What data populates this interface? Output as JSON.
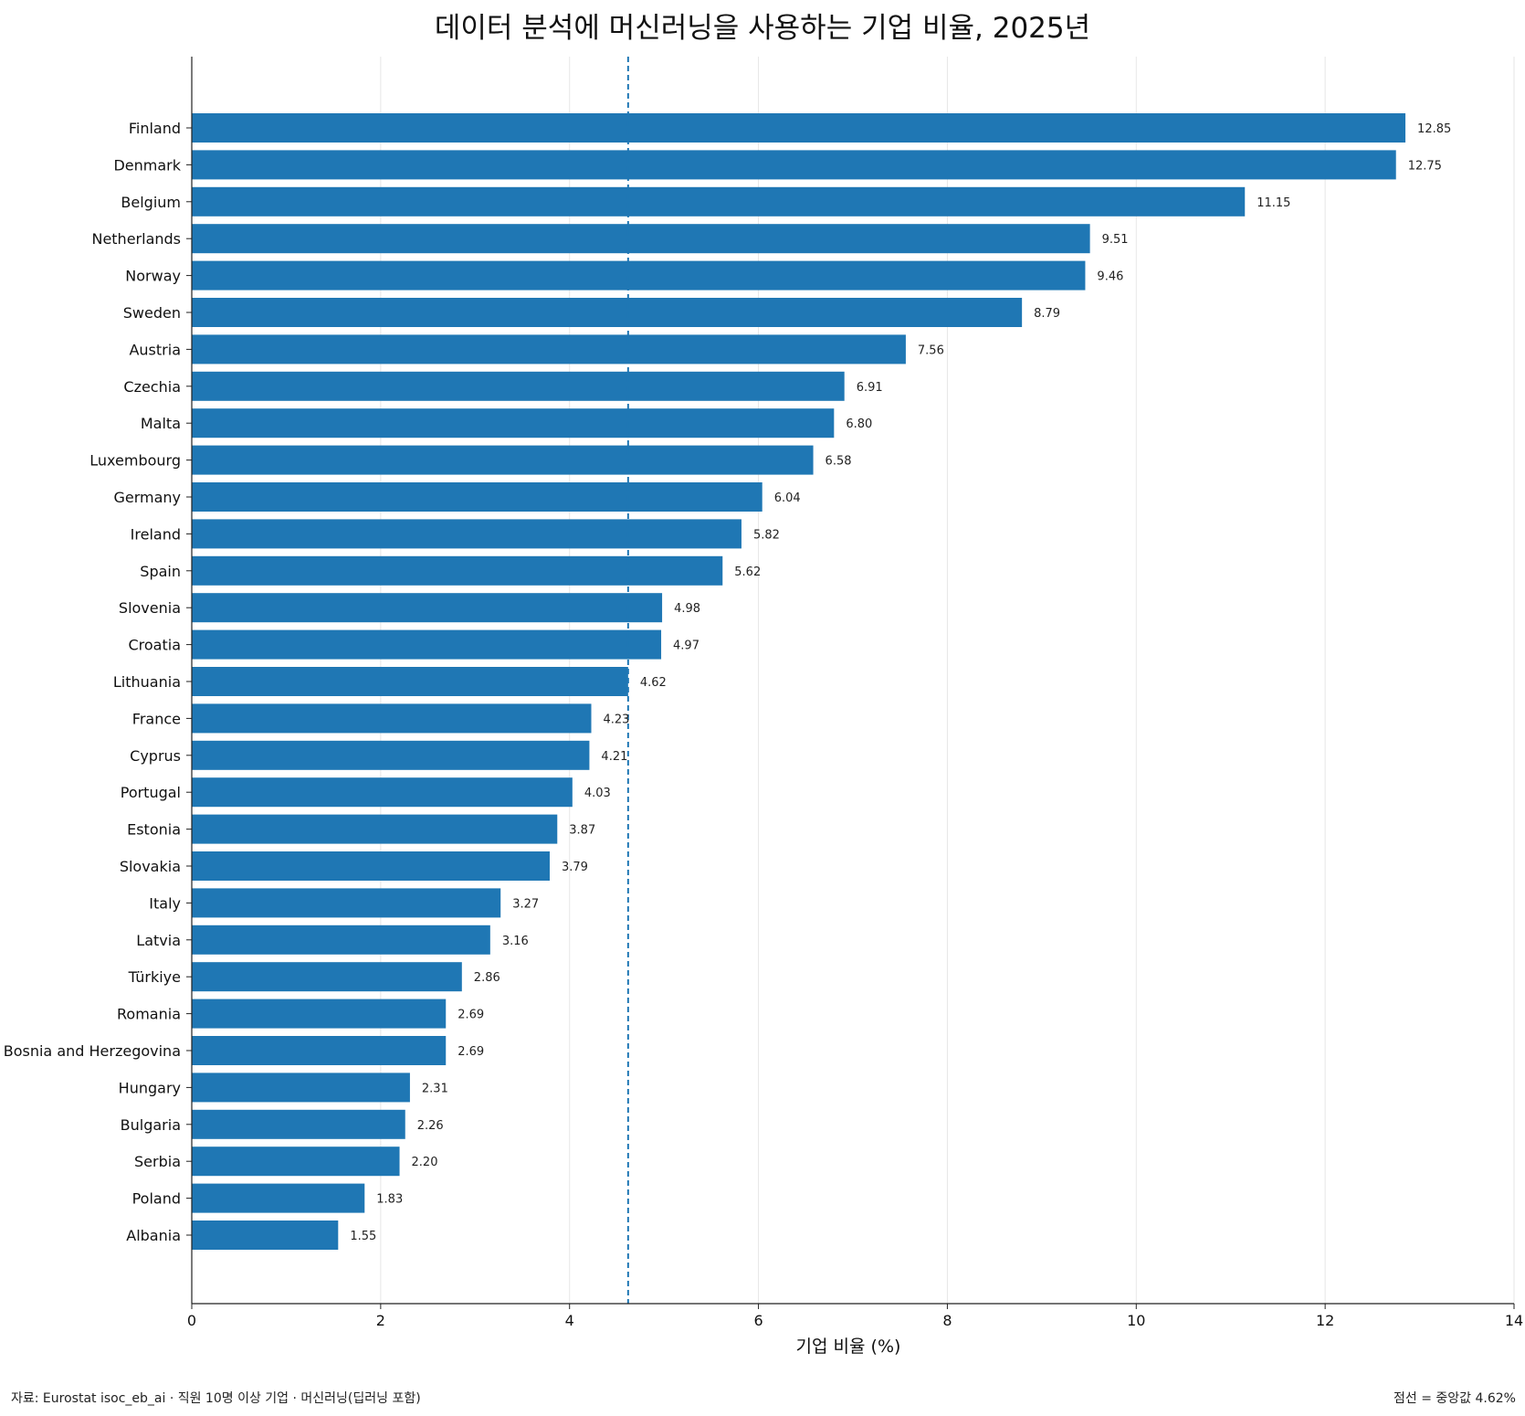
{
  "chart_data": {
    "type": "bar",
    "orientation": "horizontal",
    "title": "데이터 분석에 머신러닝을 사용하는 기업 비율, 2025년",
    "xlabel": "기업 비율 (%)",
    "ylabel": "",
    "xlim": [
      0,
      14
    ],
    "xticks": [
      "0",
      "2",
      "4",
      "6",
      "8",
      "10",
      "12",
      "14"
    ],
    "grid": "vertical",
    "bar_color": "#1f77b4",
    "reference_line": {
      "value": 4.62,
      "style": "dashed",
      "color": "#1f77b4"
    },
    "categories": [
      "Finland",
      "Denmark",
      "Belgium",
      "Netherlands",
      "Norway",
      "Sweden",
      "Austria",
      "Czechia",
      "Malta",
      "Luxembourg",
      "Germany",
      "Ireland",
      "Spain",
      "Slovenia",
      "Croatia",
      "Lithuania",
      "France",
      "Cyprus",
      "Portugal",
      "Estonia",
      "Slovakia",
      "Italy",
      "Latvia",
      "Türkiye",
      "Romania",
      "Bosnia and Herzegovina",
      "Hungary",
      "Bulgaria",
      "Serbia",
      "Poland",
      "Albania"
    ],
    "values": [
      12.85,
      12.75,
      11.15,
      9.51,
      9.46,
      8.79,
      7.56,
      6.91,
      6.8,
      6.58,
      6.04,
      5.82,
      5.62,
      4.98,
      4.97,
      4.62,
      4.23,
      4.21,
      4.03,
      3.87,
      3.79,
      3.27,
      3.16,
      2.86,
      2.69,
      2.69,
      2.31,
      2.26,
      2.2,
      1.83,
      1.55
    ],
    "value_labels": [
      "12.85",
      "12.75",
      "11.15",
      "9.51",
      "9.46",
      "8.79",
      "7.56",
      "6.91",
      "6.80",
      "6.58",
      "6.04",
      "5.82",
      "5.62",
      "4.98",
      "4.97",
      "4.62",
      "4.23",
      "4.21",
      "4.03",
      "3.87",
      "3.79",
      "3.27",
      "3.16",
      "2.86",
      "2.69",
      "2.69",
      "2.31",
      "2.26",
      "2.20",
      "1.83",
      "1.55"
    ]
  },
  "footer": {
    "source": "자료: Eurostat isoc_eb_ai · 직원 10명 이상 기업 · 머신러닝(딥러닝 포함)",
    "note": "점선 = 중앙값 4.62%"
  }
}
